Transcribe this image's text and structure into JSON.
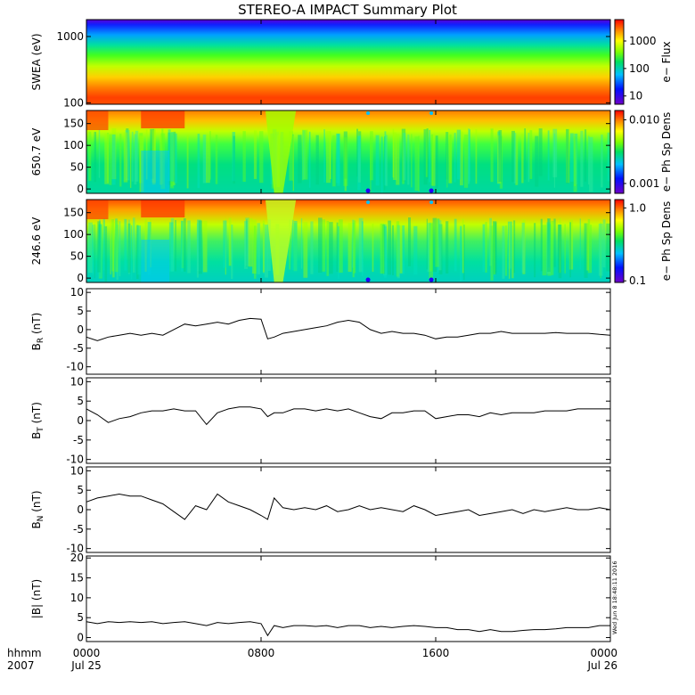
{
  "title": "STEREO-A IMPACT Summary Plot",
  "timestamp": "Wed Jun  8 18:48:11 2016",
  "x_axis": {
    "row1_label": "hhmm",
    "row2_label": "2007",
    "ticks": [
      {
        "hour": 0,
        "time": "0000",
        "date": "Jul 25"
      },
      {
        "hour": 8,
        "time": "0800",
        "date": ""
      },
      {
        "hour": 16,
        "time": "1600",
        "date": ""
      },
      {
        "hour": 24,
        "time": "0000",
        "date": "Jul 26"
      }
    ]
  },
  "chart_data": [
    {
      "type": "heatmap",
      "ylabel": "SWEA (eV)",
      "yscale": "log",
      "ylim": [
        95,
        1800
      ],
      "yticks": [
        {
          "v": 100,
          "label": "100"
        },
        {
          "v": 1000,
          "label": "1000"
        }
      ],
      "colorbar": {
        "label": "e− Flux",
        "scale": "log",
        "range": [
          5,
          6000
        ],
        "ticks": [
          {
            "v": 10,
            "label": "10"
          },
          {
            "v": 100,
            "label": "100"
          },
          {
            "v": 1000,
            "label": "1000"
          }
        ]
      },
      "description": "electron energy spectrogram, flux decreasing with energy"
    },
    {
      "type": "heatmap",
      "ylabel": "650.7 eV",
      "ylim": [
        -10,
        180
      ],
      "yticks": [
        {
          "v": 0,
          "label": "0"
        },
        {
          "v": 50,
          "label": "50"
        },
        {
          "v": 100,
          "label": "100"
        },
        {
          "v": 150,
          "label": "150"
        }
      ],
      "colorbar": {
        "label": "e− Ph Sp Dens",
        "scale": "log",
        "range": [
          0.0007,
          0.014
        ],
        "ticks": [
          {
            "v": 0.001,
            "label": "0.001"
          },
          {
            "v": 0.01,
            "label": "0.010"
          }
        ]
      }
    },
    {
      "type": "heatmap",
      "ylabel": "246.6 eV",
      "ylim": [
        -10,
        180
      ],
      "yticks": [
        {
          "v": 0,
          "label": "0"
        },
        {
          "v": 50,
          "label": "50"
        },
        {
          "v": 100,
          "label": "100"
        },
        {
          "v": 150,
          "label": "150"
        }
      ],
      "colorbar": {
        "label": "e− Ph Sp Dens",
        "scale": "log",
        "range": [
          0.095,
          1.3
        ],
        "ticks": [
          {
            "v": 0.1,
            "label": "0.1"
          },
          {
            "v": 1.0,
            "label": "1.0"
          }
        ]
      }
    },
    {
      "type": "line",
      "ylabel": "B_R (nT)",
      "ylim": [
        -12,
        11
      ],
      "yticks": [
        {
          "v": -10,
          "label": "-10"
        },
        {
          "v": -5,
          "label": "-5"
        },
        {
          "v": 0,
          "label": "0"
        },
        {
          "v": 5,
          "label": "5"
        },
        {
          "v": 10,
          "label": "10"
        }
      ],
      "x": [
        0,
        0.5,
        1,
        1.5,
        2,
        2.5,
        3,
        3.5,
        4,
        4.5,
        5,
        5.5,
        6,
        6.5,
        7,
        7.5,
        8,
        8.3,
        8.6,
        9,
        9.5,
        10,
        10.5,
        11,
        11.5,
        12,
        12.5,
        13,
        13.5,
        14,
        14.5,
        15,
        15.5,
        16,
        16.5,
        17,
        17.5,
        18,
        18.5,
        19,
        19.5,
        20,
        20.5,
        21,
        21.5,
        22,
        22.5,
        23,
        23.5,
        24
      ],
      "y": [
        -2,
        -3,
        -2,
        -1.5,
        -1,
        -1.5,
        -1,
        -1.5,
        0,
        1.5,
        1,
        1.5,
        2,
        1.5,
        2.5,
        3,
        2.8,
        -2.5,
        -2,
        -1,
        -0.5,
        0,
        0.5,
        1,
        2,
        2.5,
        2,
        0,
        -1,
        -0.5,
        -1,
        -1,
        -1.5,
        -2.5,
        -2,
        -2,
        -1.5,
        -1,
        -1,
        -0.5,
        -1,
        -1,
        -1,
        -1,
        -0.8,
        -1,
        -1,
        -1,
        -1.3,
        -1.5
      ]
    },
    {
      "type": "line",
      "ylabel": "B_T (nT)",
      "ylim": [
        -11,
        11
      ],
      "yticks": [
        {
          "v": -10,
          "label": "-10"
        },
        {
          "v": -5,
          "label": "-5"
        },
        {
          "v": 0,
          "label": "0"
        },
        {
          "v": 5,
          "label": "5"
        },
        {
          "v": 10,
          "label": "10"
        }
      ],
      "x": [
        0,
        0.5,
        1,
        1.5,
        2,
        2.5,
        3,
        3.5,
        4,
        4.5,
        5,
        5.5,
        6,
        6.5,
        7,
        7.5,
        8,
        8.3,
        8.6,
        9,
        9.5,
        10,
        10.5,
        11,
        11.5,
        12,
        12.5,
        13,
        13.5,
        14,
        14.5,
        15,
        15.5,
        16,
        16.5,
        17,
        17.5,
        18,
        18.5,
        19,
        19.5,
        20,
        20.5,
        21,
        21.5,
        22,
        22.5,
        23,
        23.5,
        24
      ],
      "y": [
        3,
        1.5,
        -0.5,
        0.5,
        1,
        2,
        2.5,
        2.5,
        3,
        2.5,
        2.5,
        -1,
        2,
        3,
        3.5,
        3.5,
        3,
        1,
        2,
        2,
        3,
        3,
        2.5,
        3,
        2.5,
        3,
        2,
        1,
        0.5,
        2,
        2,
        2.5,
        2.5,
        0.5,
        1,
        1.5,
        1.5,
        1,
        2,
        1.5,
        2,
        2,
        2,
        2.5,
        2.5,
        2.5,
        3,
        3,
        3,
        3
      ]
    },
    {
      "type": "line",
      "ylabel": "B_N (nT)",
      "ylim": [
        -11,
        11
      ],
      "yticks": [
        {
          "v": -10,
          "label": "-10"
        },
        {
          "v": -5,
          "label": "-5"
        },
        {
          "v": 0,
          "label": "0"
        },
        {
          "v": 5,
          "label": "5"
        },
        {
          "v": 10,
          "label": "10"
        }
      ],
      "x": [
        0,
        0.5,
        1,
        1.5,
        2,
        2.5,
        3,
        3.5,
        4,
        4.5,
        5,
        5.5,
        6,
        6.5,
        7,
        7.5,
        8,
        8.3,
        8.6,
        9,
        9.5,
        10,
        10.5,
        11,
        11.5,
        12,
        12.5,
        13,
        13.5,
        14,
        14.5,
        15,
        15.5,
        16,
        16.5,
        17,
        17.5,
        18,
        18.5,
        19,
        19.5,
        20,
        20.5,
        21,
        21.5,
        22,
        22.5,
        23,
        23.5,
        24
      ],
      "y": [
        2,
        3,
        3.5,
        4,
        3.5,
        3.5,
        2.5,
        1.5,
        -0.5,
        -2.5,
        1,
        0,
        4,
        2,
        1,
        0,
        -1.5,
        -2.5,
        3,
        0.5,
        0,
        0.5,
        0,
        1,
        -0.5,
        0,
        1,
        0,
        0.5,
        0,
        -0.5,
        1,
        0,
        -1.5,
        -1,
        -0.5,
        0,
        -1.5,
        -1,
        -0.5,
        0,
        -1,
        0,
        -0.5,
        0,
        0.5,
        0,
        0,
        0.5,
        0
      ]
    },
    {
      "type": "line",
      "ylabel": "|B| (nT)",
      "ylim": [
        -1,
        20.5
      ],
      "yticks": [
        {
          "v": 0,
          "label": "0"
        },
        {
          "v": 5,
          "label": "5"
        },
        {
          "v": 10,
          "label": "10"
        },
        {
          "v": 15,
          "label": "15"
        },
        {
          "v": 20,
          "label": "20"
        }
      ],
      "x": [
        0,
        0.5,
        1,
        1.5,
        2,
        2.5,
        3,
        3.5,
        4,
        4.5,
        5,
        5.5,
        6,
        6.5,
        7,
        7.5,
        8,
        8.3,
        8.6,
        9,
        9.5,
        10,
        10.5,
        11,
        11.5,
        12,
        12.5,
        13,
        13.5,
        14,
        14.5,
        15,
        15.5,
        16,
        16.5,
        17,
        17.5,
        18,
        18.5,
        19,
        19.5,
        20,
        20.5,
        21,
        21.5,
        22,
        22.5,
        23,
        23.5,
        24
      ],
      "y": [
        4,
        3.5,
        4,
        3.8,
        4,
        3.8,
        4,
        3.5,
        3.8,
        4,
        3.5,
        3,
        3.8,
        3.5,
        3.8,
        4,
        3.5,
        0.5,
        3,
        2.5,
        3,
        3,
        2.8,
        3,
        2.5,
        3,
        3,
        2.5,
        2.8,
        2.5,
        2.8,
        3,
        2.8,
        2.5,
        2.5,
        2,
        2,
        1.5,
        2,
        1.5,
        1.5,
        1.8,
        2,
        2,
        2.2,
        2.5,
        2.5,
        2.5,
        3,
        3
      ]
    }
  ]
}
